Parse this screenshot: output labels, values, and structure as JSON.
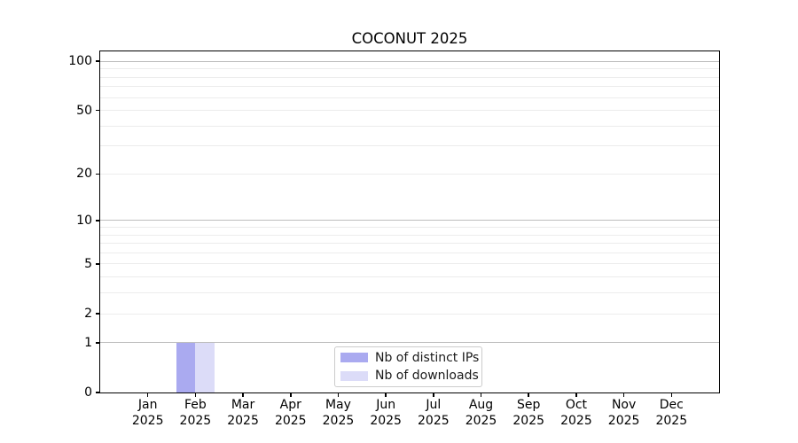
{
  "chart_data": {
    "type": "bar",
    "title": "COCONUT 2025",
    "categories": [
      "Jan",
      "Feb",
      "Mar",
      "Apr",
      "May",
      "Jun",
      "Jul",
      "Aug",
      "Sep",
      "Oct",
      "Nov",
      "Dec"
    ],
    "category_year": "2025",
    "series": [
      {
        "key": "distinct-ips",
        "name": "Nb of distinct IPs",
        "color": "#aaaaf0",
        "values": [
          0,
          1,
          0,
          0,
          0,
          0,
          0,
          0,
          0,
          0,
          0,
          0
        ]
      },
      {
        "key": "downloads",
        "name": "Nb of downloads",
        "color": "#dcdcf8",
        "values": [
          0,
          1,
          0,
          0,
          0,
          0,
          0,
          0,
          0,
          0,
          0,
          0
        ]
      }
    ],
    "yscale": "log1p",
    "ylim": [
      0,
      115
    ],
    "y_axis": {
      "ticks": [
        0,
        1,
        2,
        5,
        10,
        20,
        50,
        100
      ],
      "major_gridlines": [
        1,
        10,
        100
      ],
      "minor_gridlines": [
        2,
        3,
        4,
        5,
        6,
        7,
        8,
        9,
        20,
        30,
        40,
        50,
        60,
        70,
        80,
        90
      ],
      "major_grid_color": "#bdbdbd",
      "minor_grid_color": "#ececec"
    },
    "grid": true,
    "legend_position": "lower center"
  }
}
